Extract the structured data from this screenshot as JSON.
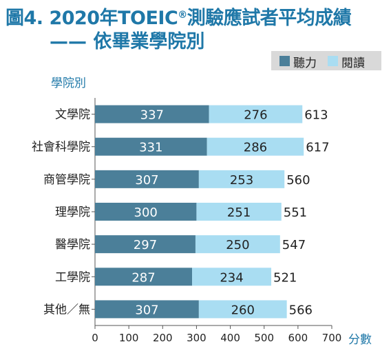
{
  "figure": {
    "title_prefix": "圖4. 2020年TOEIC",
    "title_mark": "®",
    "title_suffix": "測驗應試者平均成績",
    "subtitle": "—— 依畢業學院別"
  },
  "chart_data": {
    "type": "bar",
    "orientation": "horizontal",
    "stacked": true,
    "ylabel": "學院別",
    "xlabel": "分數",
    "xlim": [
      0,
      700
    ],
    "xticks": [
      0,
      100,
      200,
      300,
      400,
      500,
      600,
      700
    ],
    "categories": [
      "文學院",
      "社會科學院",
      "商管學院",
      "理學院",
      "醫學院",
      "工學院",
      "其他／無"
    ],
    "series": [
      {
        "name": "聽力",
        "color": "#4b7f99",
        "values": [
          337,
          331,
          307,
          300,
          297,
          287,
          307
        ]
      },
      {
        "name": "閱讀",
        "color": "#a9ddf2",
        "values": [
          276,
          286,
          253,
          251,
          250,
          234,
          260
        ]
      }
    ],
    "totals": [
      613,
      617,
      560,
      551,
      547,
      521,
      566
    ],
    "legend": "top-right",
    "grid": false
  }
}
